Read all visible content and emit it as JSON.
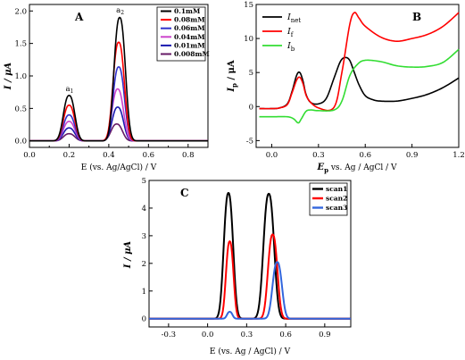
{
  "panels": [
    {
      "id": "A",
      "label": "A",
      "xlabel": "E (vs. Ag/AgCl) / V",
      "ylabel": "I / μA",
      "xlim": [
        0.0,
        0.9
      ],
      "ylim": [
        -0.1,
        2.1
      ],
      "xticks": [
        0.0,
        0.2,
        0.4,
        0.6,
        0.8
      ],
      "xtick_labels": [
        "0.0",
        "0.2",
        "0.4",
        "0.6",
        "0.8"
      ],
      "xminor": [
        0.1,
        0.3,
        0.5,
        0.7,
        0.9
      ],
      "yticks": [
        0.0,
        0.5,
        1.0,
        1.5,
        2.0
      ],
      "ytick_labels": [
        "0.0",
        "0.5",
        "1.0",
        "1.5",
        "2.0"
      ],
      "peak_labels": [
        {
          "main": "a",
          "sub": "1",
          "x": 0.2,
          "y": 0.74
        },
        {
          "main": "a",
          "sub": "2",
          "x": 0.455,
          "y": 1.95
        }
      ],
      "legend_pos": "top-right",
      "legend": [
        {
          "label": "0.1mM",
          "color": "#000000"
        },
        {
          "label": "0.08mM",
          "color": "#ff0000"
        },
        {
          "label": "0.06mM",
          "color": "#3333cc"
        },
        {
          "label": "0.04mM",
          "color": "#cc44cc"
        },
        {
          "label": "0.01mM",
          "color": "#1a1ab0"
        },
        {
          "label": "0.008mM",
          "color": "#661a66"
        }
      ]
    },
    {
      "id": "B",
      "label": "B",
      "xlabel": "Ep vs. Ag / AgCl / V",
      "ylabel": "Ip / μA",
      "xlim": [
        -0.1,
        1.2
      ],
      "ylim": [
        -6,
        15
      ],
      "xticks": [
        0.0,
        0.3,
        0.6,
        0.9,
        1.2
      ],
      "xtick_labels": [
        "0.0",
        "0.3",
        "0.6",
        "0.9",
        "1.2"
      ],
      "yticks": [
        -5,
        0,
        5,
        10,
        15
      ],
      "ytick_labels": [
        "-5",
        "0",
        "5",
        "10",
        "15"
      ],
      "legend_pos": "top-left",
      "legend": [
        {
          "main": "I",
          "sub": "net",
          "color": "#000000"
        },
        {
          "main": "I",
          "sub": "f",
          "color": "#ff0000"
        },
        {
          "main": "I",
          "sub": "b",
          "color": "#33dd33"
        }
      ]
    },
    {
      "id": "C",
      "label": "C",
      "xlabel": "E (vs. Ag / AgCl) / V",
      "ylabel": "I / μA",
      "xlim": [
        -0.45,
        1.1
      ],
      "ylim": [
        -0.3,
        5.0
      ],
      "xticks": [
        -0.3,
        0.0,
        0.3,
        0.6,
        0.9
      ],
      "xtick_labels": [
        "-0.3",
        "0.0",
        "0.3",
        "0.6",
        "0.9"
      ],
      "yticks": [
        0,
        1,
        2,
        3,
        4,
        5
      ],
      "ytick_labels": [
        "0",
        "1",
        "2",
        "3",
        "4",
        "5"
      ],
      "legend_pos": "top-right",
      "legend": [
        {
          "label": "scan1",
          "color": "#000000"
        },
        {
          "label": "scan2",
          "color": "#ff0000"
        },
        {
          "label": "scan3",
          "color": "#3366dd"
        }
      ]
    }
  ],
  "chart_data": [
    {
      "type": "line",
      "panel": "A",
      "series": [
        {
          "color": "#000000",
          "peaks": [
            [
              0.2,
              0.7,
              0.028
            ],
            [
              0.455,
              1.9,
              0.028
            ]
          ]
        },
        {
          "color": "#ff0000",
          "peaks": [
            [
              0.2,
              0.55,
              0.028
            ],
            [
              0.45,
              1.52,
              0.028
            ]
          ]
        },
        {
          "color": "#3333cc",
          "peaks": [
            [
              0.2,
              0.4,
              0.028
            ],
            [
              0.45,
              1.14,
              0.028
            ]
          ]
        },
        {
          "color": "#cc44cc",
          "peaks": [
            [
              0.2,
              0.3,
              0.028
            ],
            [
              0.445,
              0.8,
              0.028
            ]
          ]
        },
        {
          "color": "#1a1ab0",
          "peaks": [
            [
              0.2,
              0.2,
              0.028
            ],
            [
              0.445,
              0.52,
              0.028
            ]
          ]
        },
        {
          "color": "#661a66",
          "peaks": [
            [
              0.2,
              0.11,
              0.028
            ],
            [
              0.44,
              0.26,
              0.028
            ]
          ]
        }
      ]
    },
    {
      "type": "line",
      "panel": "B",
      "series": [
        {
          "name": "Inet",
          "color": "#000000",
          "x": [
            -0.08,
            0.0,
            0.05,
            0.1,
            0.13,
            0.16,
            0.18,
            0.2,
            0.22,
            0.25,
            0.3,
            0.35,
            0.4,
            0.44,
            0.47,
            0.5,
            0.53,
            0.56,
            0.6,
            0.65,
            0.7,
            0.8,
            0.9,
            1.0,
            1.1,
            1.2
          ],
          "y": [
            -0.3,
            -0.3,
            -0.2,
            0.4,
            2.2,
            4.6,
            5.0,
            3.8,
            1.8,
            0.6,
            0.4,
            1.2,
            4.2,
            6.6,
            7.2,
            6.8,
            5.0,
            3.2,
            1.6,
            1.0,
            0.8,
            0.8,
            1.2,
            1.8,
            2.8,
            4.2
          ]
        },
        {
          "name": "If",
          "color": "#ff0000",
          "x": [
            -0.08,
            0.0,
            0.05,
            0.1,
            0.13,
            0.16,
            0.18,
            0.2,
            0.23,
            0.3,
            0.4,
            0.45,
            0.5,
            0.53,
            0.56,
            0.6,
            0.7,
            0.8,
            0.9,
            1.0,
            1.1,
            1.2
          ],
          "y": [
            -0.3,
            -0.3,
            -0.2,
            0.3,
            2.0,
            3.9,
            4.3,
            3.4,
            1.2,
            -0.2,
            -0.1,
            5.0,
            12.0,
            13.8,
            13.0,
            11.8,
            10.2,
            9.6,
            10.0,
            10.6,
            11.8,
            13.8
          ]
        },
        {
          "name": "Ib",
          "color": "#33dd33",
          "x": [
            -0.08,
            0.0,
            0.1,
            0.14,
            0.17,
            0.19,
            0.22,
            0.25,
            0.3,
            0.4,
            0.45,
            0.5,
            0.55,
            0.6,
            0.7,
            0.8,
            0.9,
            1.0,
            1.1,
            1.2
          ],
          "y": [
            -1.5,
            -1.5,
            -1.5,
            -1.8,
            -2.4,
            -1.8,
            -0.7,
            -0.5,
            -0.6,
            -0.5,
            0.8,
            4.5,
            6.2,
            6.8,
            6.6,
            6.0,
            5.8,
            5.9,
            6.5,
            8.4
          ]
        }
      ]
    },
    {
      "type": "line",
      "panel": "C",
      "series": [
        {
          "name": "scan1",
          "color": "#000000",
          "peaks": [
            [
              0.16,
              4.55,
              0.035
            ],
            [
              0.47,
              4.52,
              0.04
            ]
          ]
        },
        {
          "name": "scan2",
          "color": "#ff0000",
          "peaks": [
            [
              0.17,
              2.8,
              0.028
            ],
            [
              0.5,
              3.05,
              0.035
            ]
          ]
        },
        {
          "name": "scan3",
          "color": "#3366dd",
          "peaks": [
            [
              0.17,
              0.25,
              0.02
            ],
            [
              0.535,
              2.05,
              0.035
            ]
          ]
        }
      ]
    }
  ]
}
